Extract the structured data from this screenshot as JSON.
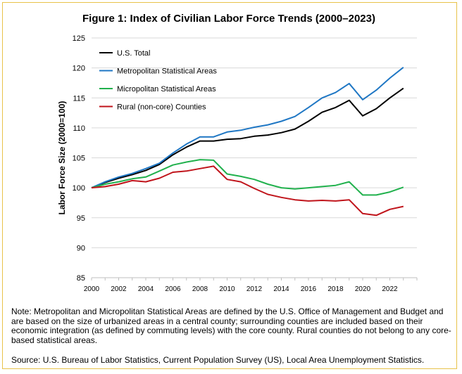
{
  "title": "Figure 1: Index of Civilian Labor Force Trends (2000–2023)",
  "note": "Note: Metropolitan and Micropolitan Statistical Areas are defined by the U.S. Office of Management and Budget and are based on the size of urbanized areas in a central county; surrounding counties are included based on their economic integration (as defined by commuting levels) with the core county. Rural counties do not belong to any core-based statistical areas.",
  "source": "Source: U.S. Bureau of Labor Statistics, Current Population Survey (US), Local Area Unemployment Statistics.",
  "chart_data": {
    "type": "line",
    "title": "Figure 1: Index of Civilian Labor Force Trends (2000–2023)",
    "xlabel": "",
    "ylabel": "Labor Force Size (2000=100)",
    "x": [
      2000,
      2001,
      2002,
      2003,
      2004,
      2005,
      2006,
      2007,
      2008,
      2009,
      2010,
      2011,
      2012,
      2013,
      2014,
      2015,
      2016,
      2017,
      2018,
      2019,
      2020,
      2021,
      2022,
      2023
    ],
    "xticks": [
      2000,
      2002,
      2004,
      2006,
      2008,
      2010,
      2012,
      2014,
      2016,
      2018,
      2020,
      2022
    ],
    "xlim": [
      2000,
      2024
    ],
    "ylim": [
      85,
      125
    ],
    "yticks": [
      85,
      90,
      95,
      100,
      105,
      110,
      115,
      120,
      125
    ],
    "grid": "horizontal",
    "legend_position": "top-left",
    "series": [
      {
        "name": "U.S. Total",
        "color": "#000000",
        "values": [
          100.0,
          100.9,
          101.6,
          102.2,
          102.9,
          103.9,
          105.5,
          106.8,
          107.8,
          107.8,
          108.1,
          108.2,
          108.6,
          108.8,
          109.2,
          109.8,
          111.1,
          112.6,
          113.4,
          114.6,
          112.0,
          113.2,
          115.0,
          116.6
        ]
      },
      {
        "name": "Metropolitan Statistical Areas",
        "color": "#1f77c4",
        "values": [
          100.0,
          101.0,
          101.8,
          102.4,
          103.2,
          104.1,
          105.8,
          107.3,
          108.5,
          108.5,
          109.3,
          109.6,
          110.1,
          110.5,
          111.1,
          111.9,
          113.4,
          115.0,
          115.9,
          117.4,
          114.7,
          116.3,
          118.3,
          120.1
        ]
      },
      {
        "name": "Micropolitan Statistical Areas",
        "color": "#21b14d",
        "values": [
          100.0,
          100.6,
          101.0,
          101.5,
          101.8,
          102.8,
          103.8,
          104.3,
          104.7,
          104.6,
          102.3,
          101.9,
          101.4,
          100.6,
          100.0,
          99.8,
          100.0,
          100.2,
          100.4,
          101.0,
          98.8,
          98.8,
          99.3,
          100.1
        ]
      },
      {
        "name": "Rural (non-core) Counties",
        "color": "#c0141b",
        "values": [
          100.0,
          100.2,
          100.6,
          101.2,
          101.0,
          101.6,
          102.6,
          102.8,
          103.2,
          103.6,
          101.4,
          101.0,
          99.9,
          98.9,
          98.4,
          98.0,
          97.8,
          97.9,
          97.8,
          98.0,
          95.7,
          95.4,
          96.4,
          96.9
        ]
      }
    ]
  }
}
